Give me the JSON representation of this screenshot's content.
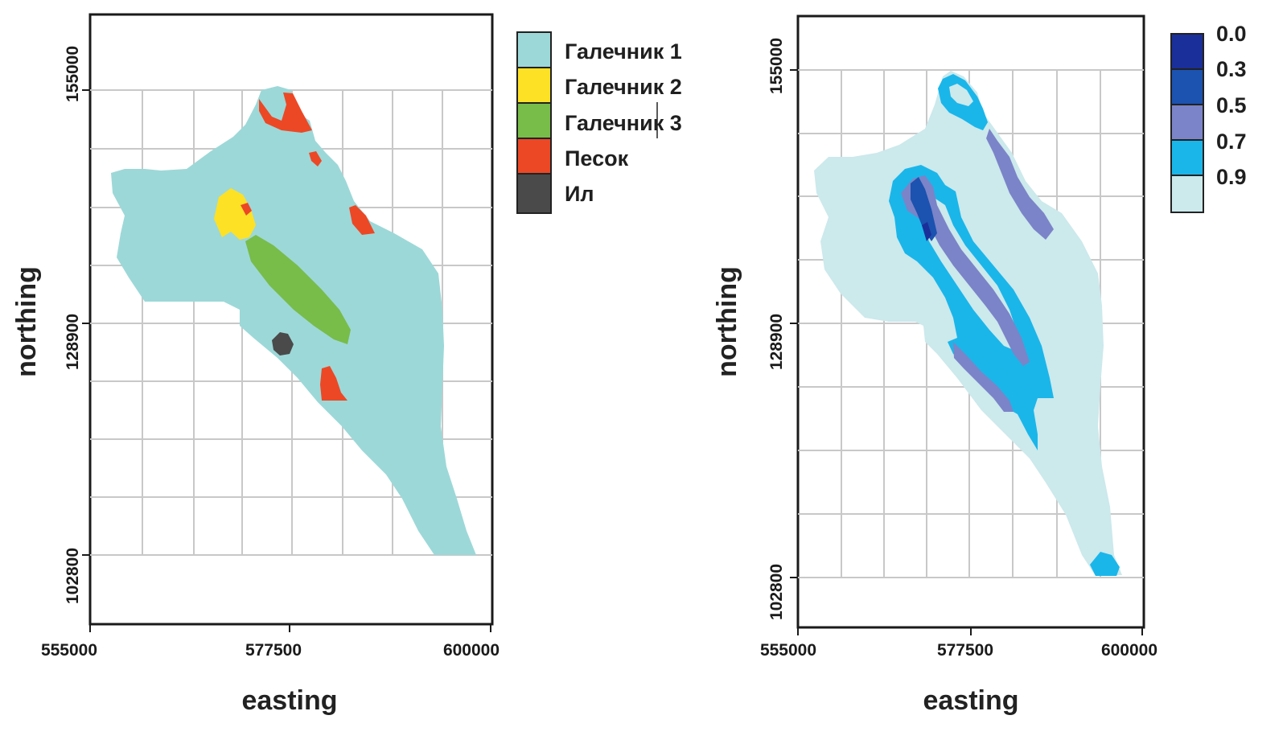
{
  "left_map": {
    "xlabel": "easting",
    "ylabel": "northing",
    "x_ticks": [
      "555000",
      "577500",
      "600000"
    ],
    "y_ticks": [
      "155000",
      "128900",
      "102800"
    ],
    "legend": [
      {
        "label": "Галечник 1",
        "color": "#9dd8d8"
      },
      {
        "label": "Галечник 2",
        "color": "#fde125"
      },
      {
        "label": "Галечник 3",
        "color": "#78bc4a"
      },
      {
        "label": "Песок",
        "color": "#ec4826"
      },
      {
        "label": "Ил",
        "color": "#4a4a4a"
      }
    ]
  },
  "right_map": {
    "xlabel": "easting",
    "ylabel": "northing",
    "x_ticks": [
      "555000",
      "577500",
      "600000"
    ],
    "y_ticks": [
      "155000",
      "128900",
      "102800"
    ],
    "scale": [
      {
        "label": "0.0",
        "color": "#1a2f9a"
      },
      {
        "label": "0.3",
        "color": "#1c52b0"
      },
      {
        "label": "0.5",
        "color": "#7b84c8"
      },
      {
        "label": "0.7",
        "color": "#1ab6ea"
      },
      {
        "label": "0.9",
        "color": "#cce9ec"
      }
    ]
  }
}
